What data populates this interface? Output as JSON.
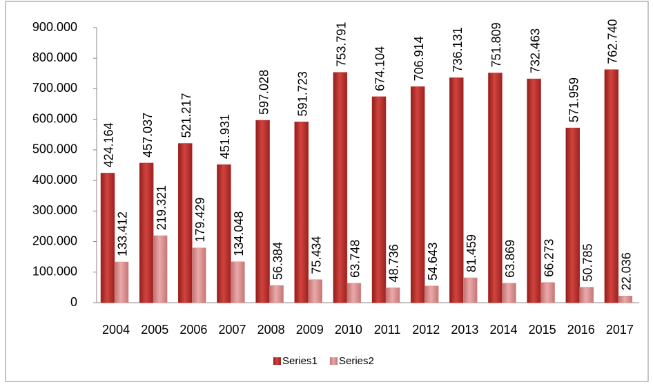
{
  "chart_data": {
    "type": "bar",
    "categories": [
      "2004",
      "2005",
      "2006",
      "2007",
      "2008",
      "2009",
      "2010",
      "2011",
      "2012",
      "2013",
      "2014",
      "2015",
      "2016",
      "2017"
    ],
    "series": [
      {
        "name": "Series1",
        "color": "#c0302c",
        "values": [
          424164,
          457037,
          521217,
          451931,
          597028,
          591723,
          753791,
          674104,
          706914,
          736131,
          751809,
          732463,
          571959,
          762740
        ],
        "value_labels": [
          "424.164",
          "457.037",
          "521.217",
          "451.931",
          "597.028",
          "591.723",
          "753.791",
          "674.104",
          "706.914",
          "736.131",
          "751.809",
          "732.463",
          "571.959",
          "762.740"
        ]
      },
      {
        "name": "Series2",
        "color": "#d98a8a",
        "values": [
          133412,
          219321,
          179429,
          134048,
          56384,
          75434,
          63748,
          48736,
          54643,
          81459,
          63869,
          66273,
          50785,
          22036
        ],
        "value_labels": [
          "133.412",
          "219.321",
          "179.429",
          "134.048",
          "56.384",
          "75.434",
          "63.748",
          "48.736",
          "54.643",
          "81.459",
          "63.869",
          "66.273",
          "50.785",
          "22.036"
        ]
      }
    ],
    "ylim": [
      0,
      900000
    ],
    "yticks": [
      0,
      {
        "value": 100000,
        "label": "100.000"
      },
      {
        "value": 200000,
        "label": "200.000"
      },
      {
        "value": 300000,
        "label": "300.000"
      },
      {
        "value": 400000,
        "label": "400.000"
      },
      {
        "value": 500000,
        "label": "500.000"
      },
      {
        "value": 600000,
        "label": "600.000"
      },
      {
        "value": 700000,
        "label": "700.000"
      },
      {
        "value": 800000,
        "label": "800.000"
      },
      {
        "value": 900000,
        "label": "900.000"
      }
    ],
    "grid": false,
    "legend": "bottom"
  }
}
